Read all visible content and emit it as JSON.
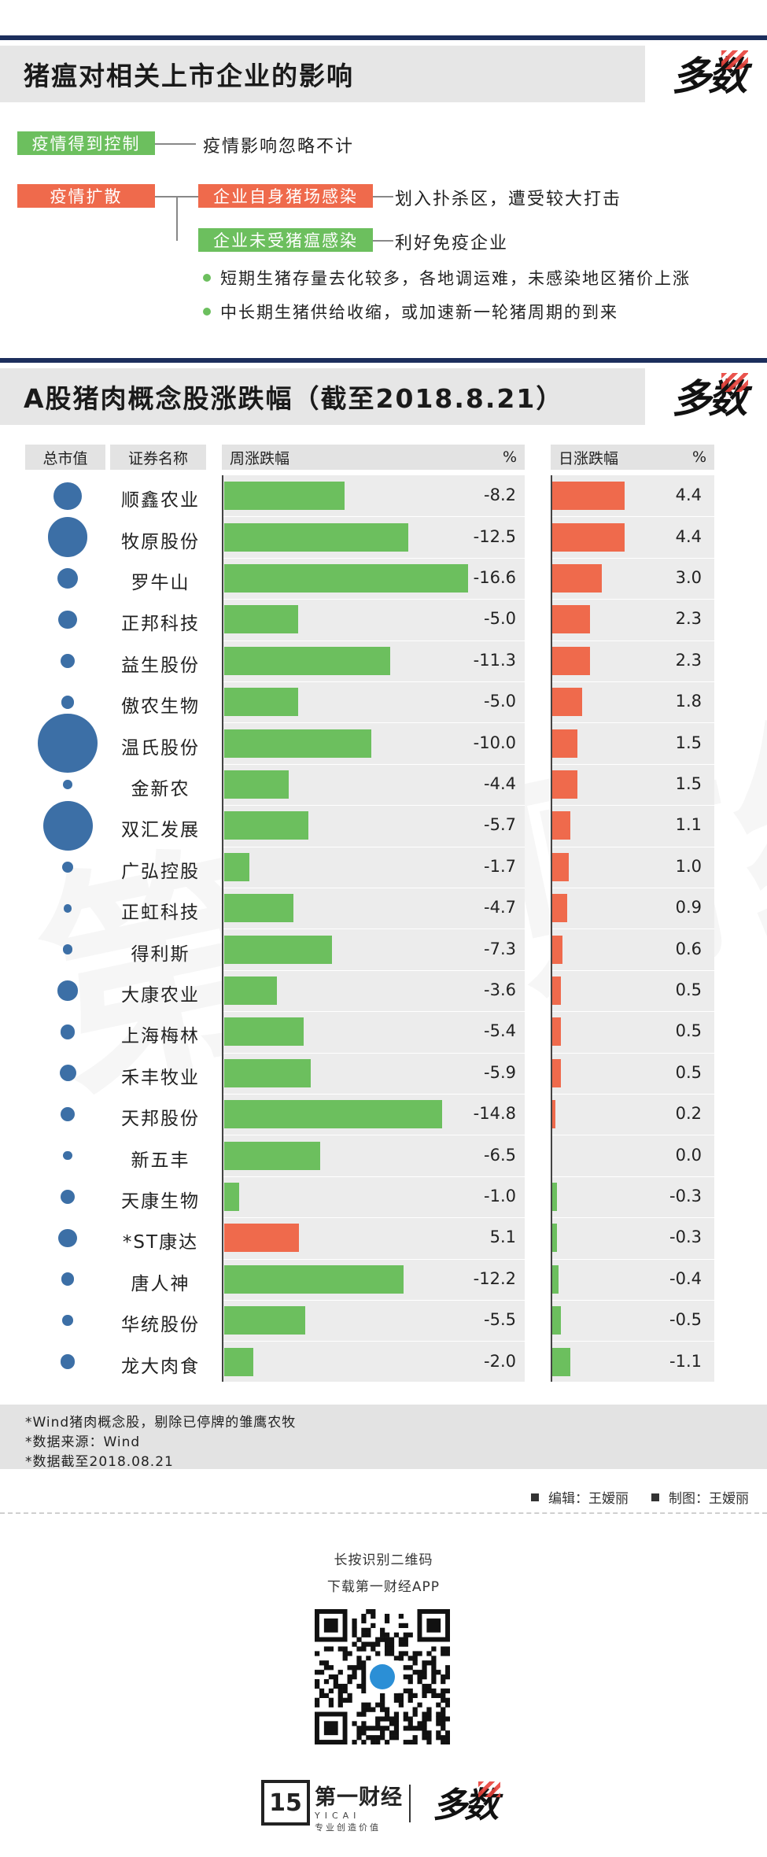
{
  "section1": {
    "title": "猪瘟对相关上市企业的影响",
    "logo": "多数",
    "tag_controlled": "疫情得到控制",
    "note_controlled": "疫情影响忽略不计",
    "tag_spread": "疫情扩散",
    "tag_infected": "企业自身猪场感染",
    "note_infected": "划入扑杀区，遭受较大打击",
    "tag_uninfected": "企业未受猪瘟感染",
    "note_uninfected": "利好免疫企业",
    "bullet1": "短期生猪存量去化较多，各地调运难，未感染地区猪价上涨",
    "bullet2": "中长期生猪供给收缩，或加速新一轮猪周期的到来"
  },
  "section2": {
    "title": "A股猪肉概念股涨跌幅（截至2018.8.21）",
    "logo": "多数",
    "hdr_cap": "总市值",
    "hdr_name": "证券名称",
    "hdr_week": "周涨跌幅",
    "hdr_week_unit": "%",
    "hdr_day": "日涨跌幅",
    "hdr_day_unit": "%"
  },
  "colors": {
    "positive": "#ef6a4c",
    "negative": "#6cbf5e",
    "bubble": "#3c6fa6",
    "navy": "#1c2e5c"
  },
  "chart_data": {
    "type": "bar",
    "title": "A股猪肉概念股涨跌幅（截至2018.8.21）",
    "categories": [
      "顺鑫农业",
      "牧原股份",
      "罗牛山",
      "正邦科技",
      "益生股份",
      "傲农生物",
      "温氏股份",
      "金新农",
      "双汇发展",
      "广弘控股",
      "正虹科技",
      "得利斯",
      "大康农业",
      "上海梅林",
      "禾丰牧业",
      "天邦股份",
      "新五丰",
      "天康生物",
      "*ST康达",
      "唐人神",
      "华统股份",
      "龙大肉食"
    ],
    "series": [
      {
        "name": "周涨跌幅",
        "values": [
          -8.2,
          -12.5,
          -16.6,
          -5.0,
          -11.3,
          -5.0,
          -10.0,
          -4.4,
          -5.7,
          -1.7,
          -4.7,
          -7.3,
          -3.6,
          -5.4,
          -5.9,
          -14.8,
          -6.5,
          -1.0,
          5.1,
          -12.2,
          -5.5,
          -2.0
        ]
      },
      {
        "name": "日涨跌幅",
        "values": [
          4.4,
          4.4,
          3.0,
          2.3,
          2.3,
          1.8,
          1.5,
          1.5,
          1.1,
          1.0,
          0.9,
          0.6,
          0.5,
          0.5,
          0.5,
          0.2,
          0.0,
          -0.3,
          -0.3,
          -0.4,
          -0.5,
          -1.1
        ]
      }
    ],
    "week_labels": [
      "-8.2",
      "-12.5",
      "-16.6",
      "-5.0",
      "-11.3",
      "-5.0",
      "-10.0",
      "-4.4",
      "-5.7",
      "-1.7",
      "-4.7",
      "-7.3",
      "-3.6",
      "-5.4",
      "-5.9",
      "-14.8",
      "-6.5",
      "-1.0",
      "5.1",
      "-12.2",
      "-5.5",
      "-2.0"
    ],
    "day_labels": [
      "4.4",
      "4.4",
      "3.0",
      "2.3",
      "2.3",
      "1.8",
      "1.5",
      "1.5",
      "1.1",
      "1.0",
      "0.9",
      "0.6",
      "0.5",
      "0.5",
      "0.5",
      "0.2",
      "0.0",
      "-0.3",
      "-0.3",
      "-0.4",
      "-0.5",
      "-1.1"
    ],
    "market_cap_relative": [
      0.42,
      0.6,
      0.32,
      0.28,
      0.22,
      0.2,
      0.9,
      0.14,
      0.75,
      0.17,
      0.13,
      0.15,
      0.3,
      0.22,
      0.25,
      0.22,
      0.14,
      0.22,
      0.28,
      0.2,
      0.16,
      0.22
    ]
  },
  "footer": {
    "note1": "*Wind猪肉概念股，剔除已停牌的雏鹰农牧",
    "note2": "*数据来源：Wind",
    "note3": "*数据截至2018.08.21",
    "editor": "编辑：王嫒丽",
    "maker": "制图：王嫒丽",
    "qr_line1": "长按识别二维码",
    "qr_line2": "下载第一财经APP",
    "brand": "第一财经",
    "brand_sub": "YICAI",
    "brand_slogan": "专业创造价值",
    "brand_logo2": "多数"
  }
}
